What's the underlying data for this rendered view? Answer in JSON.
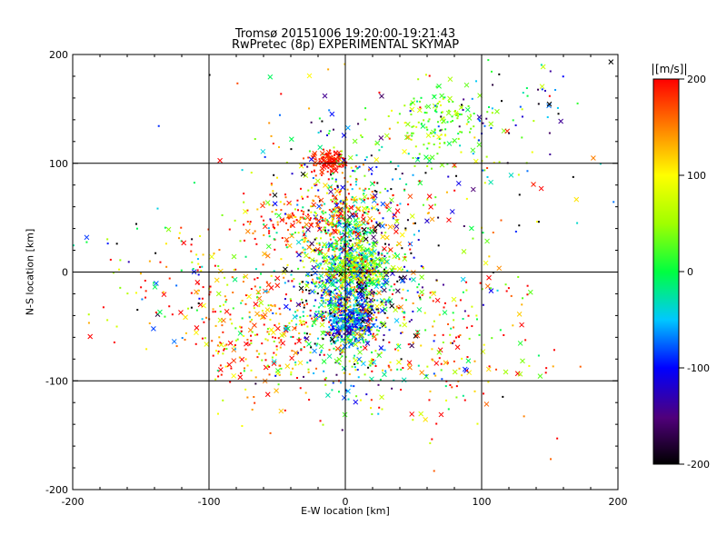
{
  "chart_data": {
    "type": "scatter",
    "title": "Tromsø 20151006 19:20:00-19:21:43",
    "subtitle": "RwPretec (8p) EXPERIMENTAL SKYMAP",
    "xlabel": "E-W location [km]",
    "ylabel": "N-S location [km]",
    "xlim": [
      -200,
      200
    ],
    "ylim": [
      -200,
      200
    ],
    "x_ticks": [
      "-200",
      "-100",
      "0",
      "100",
      "200"
    ],
    "y_ticks": [
      "-200",
      "-100",
      "0",
      "100",
      "200"
    ],
    "grid": true,
    "colorbar": {
      "label": "[m/s]",
      "range": [
        -200,
        200
      ],
      "ticks": [
        "200",
        "100",
        "0",
        "-100",
        "-200"
      ]
    },
    "point_count_estimate": 3000,
    "clusters": [
      {
        "x": 0,
        "y": 0,
        "sx": 14,
        "sy": 45,
        "v": 0,
        "vs": 90,
        "n": 900
      },
      {
        "x": 5,
        "y": -45,
        "sx": 10,
        "sy": 10,
        "v": -80,
        "vs": 40,
        "n": 300
      },
      {
        "x": -12,
        "y": 102,
        "sx": 6,
        "sy": 5,
        "v": 190,
        "vs": 15,
        "n": 120
      },
      {
        "x": 70,
        "y": 135,
        "sx": 18,
        "sy": 20,
        "v": 40,
        "vs": 30,
        "n": 150
      },
      {
        "x": 10,
        "y": 5,
        "sx": 12,
        "sy": 8,
        "v": 60,
        "vs": 60,
        "n": 250
      },
      {
        "x": -20,
        "y": 50,
        "sx": 30,
        "sy": 15,
        "v": 160,
        "vs": 60,
        "n": 250
      },
      {
        "x": -60,
        "y": -60,
        "sx": 25,
        "sy": 30,
        "v": 150,
        "vs": 80,
        "n": 250
      },
      {
        "x": 10,
        "y": -20,
        "sx": 25,
        "sy": 40,
        "v": -50,
        "vs": 120,
        "n": 450
      },
      {
        "x": 60,
        "y": -70,
        "sx": 40,
        "sy": 40,
        "v": 120,
        "vs": 100,
        "n": 200
      },
      {
        "x": -110,
        "y": -10,
        "sx": 40,
        "sy": 30,
        "v": 80,
        "vs": 150,
        "n": 150
      },
      {
        "x": 30,
        "y": 70,
        "sx": 60,
        "sy": 70,
        "v": 0,
        "vs": 150,
        "n": 300
      },
      {
        "x": 120,
        "y": 140,
        "sx": 30,
        "sy": 25,
        "v": -100,
        "vs": 80,
        "n": 60
      }
    ]
  }
}
